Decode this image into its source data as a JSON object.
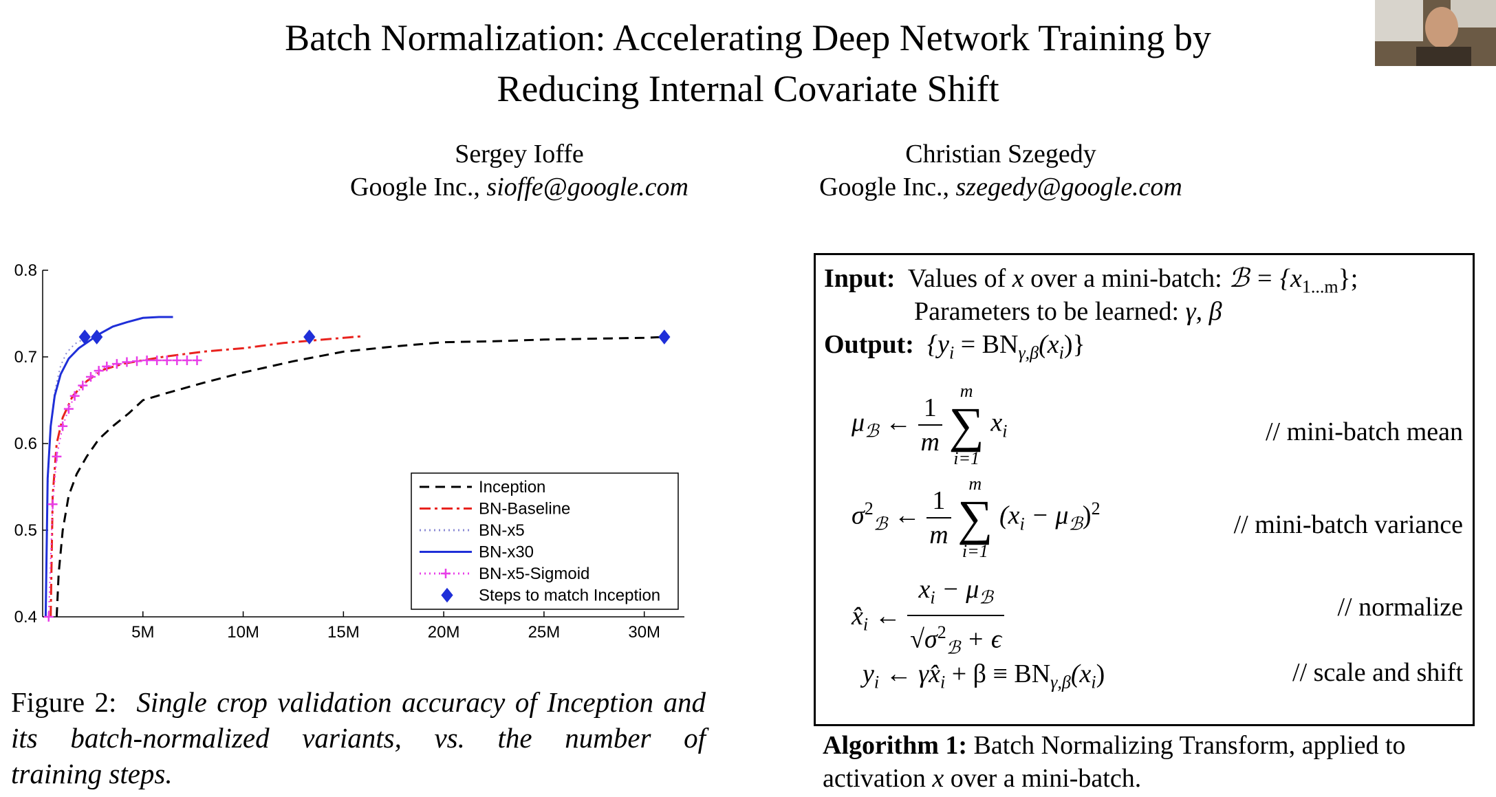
{
  "paper": {
    "title_line1": "Batch Normalization: Accelerating Deep Network Training by",
    "title_line2": "Reducing Internal Covariate Shift",
    "authors": [
      {
        "name": "Sergey Ioffe",
        "affiliation": "Google Inc.,",
        "email": "sioffe@google.com"
      },
      {
        "name": "Christian Szegedy",
        "affiliation": "Google Inc.,",
        "email": "szegedy@google.com"
      }
    ]
  },
  "figure": {
    "label": "Figure 2:",
    "caption_line1": "Single crop validation accuracy of Inception",
    "caption_line2": "and its batch-normalized variants, vs.  the number of",
    "caption_line3": "training steps."
  },
  "chart_data": {
    "type": "line",
    "title": "",
    "xlabel": "",
    "ylabel": "",
    "xlim": [
      0,
      32000000
    ],
    "ylim": [
      0.4,
      0.8
    ],
    "x_ticks": [
      5000000,
      10000000,
      15000000,
      20000000,
      25000000,
      30000000
    ],
    "x_tick_labels": [
      "5M",
      "10M",
      "15M",
      "20M",
      "25M",
      "30M"
    ],
    "y_ticks": [
      0.4,
      0.5,
      0.6,
      0.7,
      0.8
    ],
    "y_tick_labels": [
      "0.4",
      "0.5",
      "0.6",
      "0.7",
      "0.8"
    ],
    "legend_position": "lower-right",
    "series": [
      {
        "name": "Inception",
        "color": "#000000",
        "style": "dashed",
        "x": [
          700000,
          800000,
          1000000,
          1300000,
          1700000,
          2200000,
          2800000,
          3500000,
          4300000,
          5000000,
          6000000,
          8000000,
          10000000,
          12500000,
          15000000,
          17500000,
          20000000,
          22500000,
          25000000,
          27500000,
          30000000,
          31000000
        ],
        "y": [
          0.4,
          0.45,
          0.5,
          0.54,
          0.565,
          0.585,
          0.605,
          0.62,
          0.635,
          0.65,
          0.657,
          0.67,
          0.682,
          0.695,
          0.706,
          0.712,
          0.717,
          0.718,
          0.72,
          0.721,
          0.722,
          0.723
        ]
      },
      {
        "name": "BN-Baseline",
        "color": "#e8231e",
        "style": "dashdot",
        "x": [
          400000,
          500000,
          700000,
          1000000,
          1500000,
          2200000,
          3000000,
          4000000,
          5000000,
          6000000,
          8000000,
          10000000,
          12000000,
          14000000,
          16000000
        ],
        "y": [
          0.4,
          0.54,
          0.6,
          0.63,
          0.655,
          0.672,
          0.685,
          0.692,
          0.696,
          0.7,
          0.706,
          0.71,
          0.716,
          0.72,
          0.724
        ]
      },
      {
        "name": "BN-x5",
        "color": "#8a8ad4",
        "style": "dotted",
        "x": [
          150000,
          250000,
          400000,
          600000,
          900000,
          1200000,
          1600000,
          2000000,
          2100000
        ],
        "y": [
          0.4,
          0.55,
          0.62,
          0.66,
          0.69,
          0.705,
          0.715,
          0.72,
          0.723
        ]
      },
      {
        "name": "BN-x30",
        "color": "#1f2fd8",
        "style": "solid",
        "x": [
          150000,
          250000,
          400000,
          600000,
          900000,
          1300000,
          1800000,
          2300000,
          2800000,
          3500000,
          4200000,
          5000000,
          5800000,
          6500000
        ],
        "y": [
          0.4,
          0.56,
          0.62,
          0.655,
          0.68,
          0.698,
          0.71,
          0.718,
          0.726,
          0.735,
          0.74,
          0.745,
          0.746,
          0.746
        ]
      },
      {
        "name": "BN-x5-Sigmoid",
        "color": "#e83ee8",
        "style": "dotted-plus",
        "x": [
          300000,
          500000,
          700000,
          1000000,
          1300000,
          1600000,
          2000000,
          2400000,
          2800000,
          3200000,
          3700000,
          4200000,
          4700000,
          5200000,
          5700000,
          6200000,
          6700000,
          7200000,
          7700000
        ],
        "y": [
          0.4,
          0.53,
          0.585,
          0.62,
          0.64,
          0.655,
          0.667,
          0.677,
          0.684,
          0.689,
          0.692,
          0.694,
          0.695,
          0.696,
          0.696,
          0.696,
          0.696,
          0.696,
          0.696
        ]
      },
      {
        "name": "Steps to match Inception",
        "color": "#1f2fd8",
        "style": "diamond-markers",
        "x": [
          2100000,
          2700000,
          13300000,
          31000000
        ],
        "y": [
          0.723,
          0.723,
          0.723,
          0.723
        ]
      }
    ]
  },
  "algorithm": {
    "input_label": "Input:",
    "input_text": "Values of",
    "input_var": "x",
    "input_text2": "over a mini-batch:",
    "input_set": "ℬ = {x",
    "input_set_sub": "1...m",
    "input_set_end": "};",
    "params_text": "Parameters to be learned:",
    "params_vars": "γ, β",
    "output_label": "Output:",
    "output_open": "{y",
    "output_sub_i": "i",
    "output_eq": " = BN",
    "output_sub_gb": "γ,β",
    "output_arg": "(x",
    "output_close": ")}",
    "mean_lhs": "μ",
    "mean_lhs_sub": "ℬ",
    "arrow": "←",
    "one": "1",
    "m": "m",
    "sum_top": "m",
    "sum_bottom": "i=1",
    "sum_sym": "∑",
    "x_i": "x",
    "i": "i",
    "mean_comment": "// mini-batch mean",
    "var_lhs": "σ",
    "sq": "2",
    "var_body": "(x",
    "minus_mu": " − μ",
    "var_close": ")",
    "var_comment": "// mini-batch variance",
    "norm_lhs": "x̂",
    "norm_num_tail": " − μ",
    "norm_den": "√",
    "sigma": "σ",
    "plus_eps": " + ϵ",
    "norm_comment": "// normalize",
    "scale_lhs": "y",
    "scale_rhs": "γx̂",
    "scale_rhs2": " + β ≡ BN",
    "scale_arg": "(x",
    "scale_close": ")",
    "scale_comment": "// scale and shift",
    "caption_label": "Algorithm 1:",
    "caption_line1": "Batch Normalizing Transform, applied to",
    "caption_line2a": "activation",
    "caption_var": "x",
    "caption_line2b": "over a mini-batch."
  },
  "webcam": {
    "icon": "presenter-webcam-icon"
  }
}
